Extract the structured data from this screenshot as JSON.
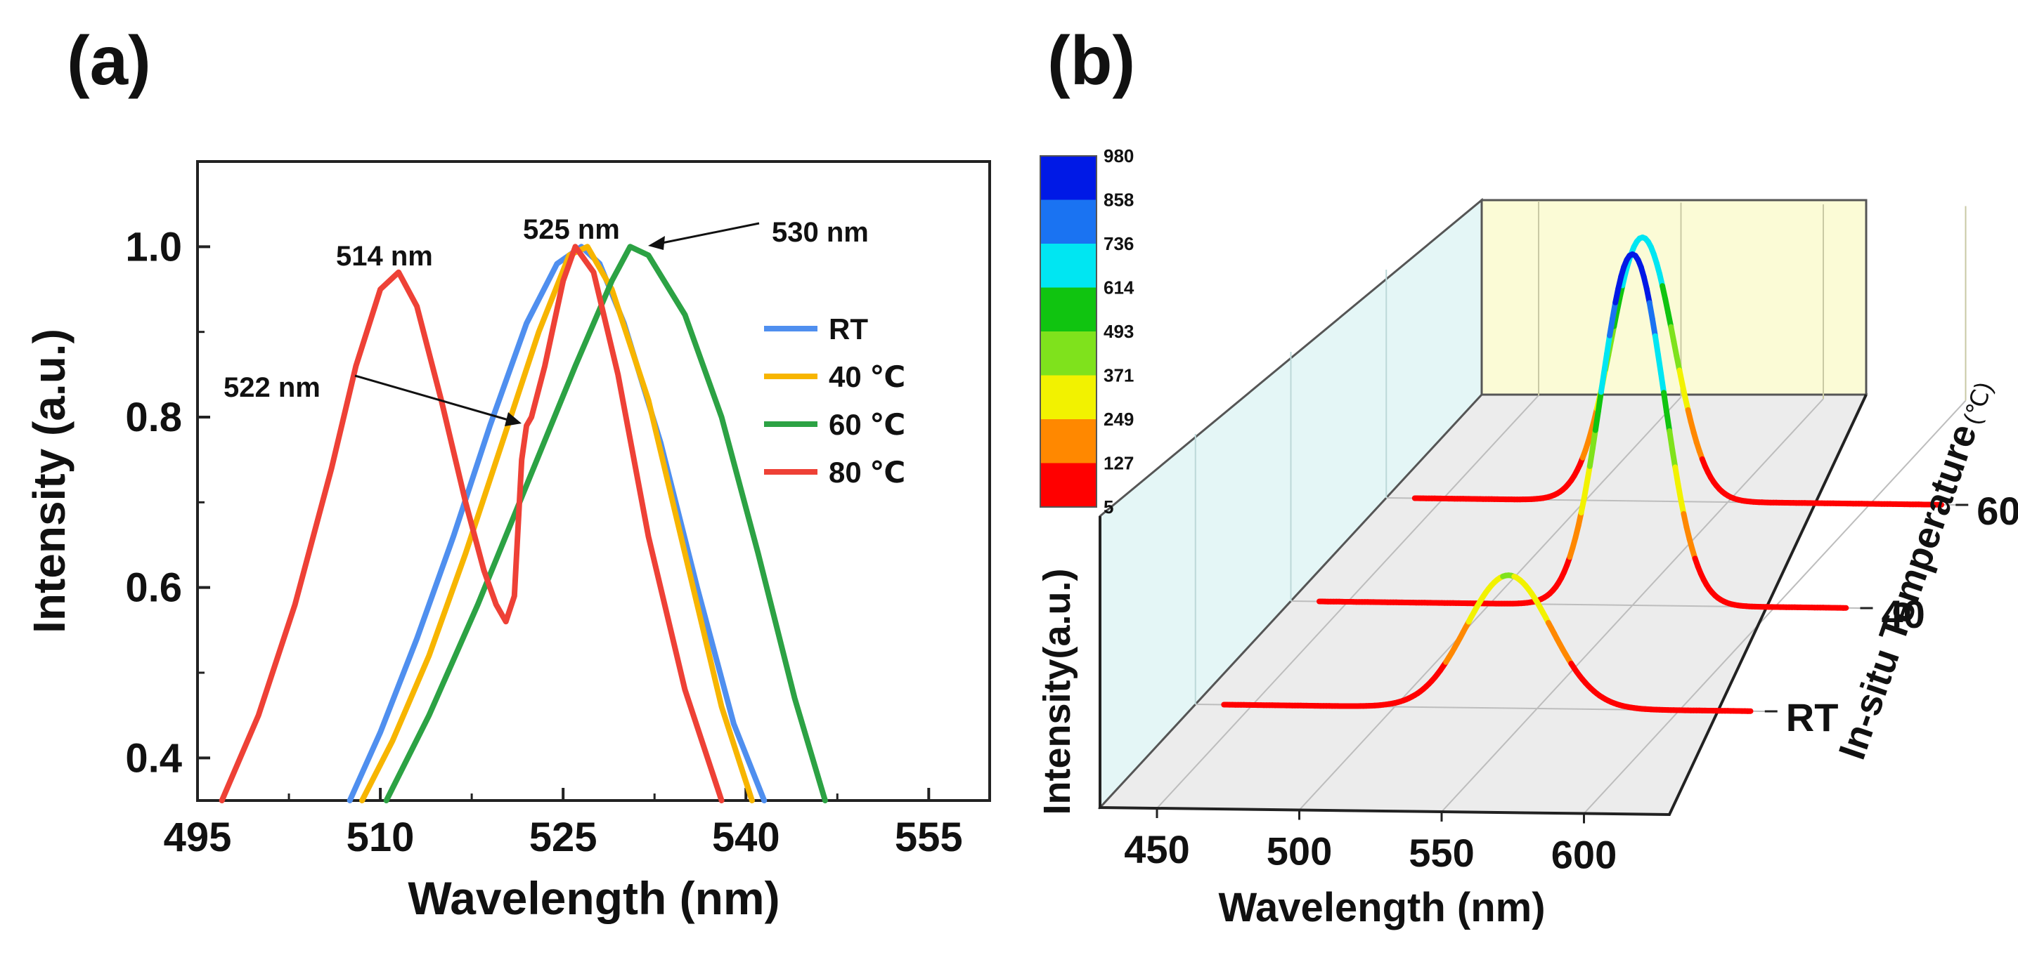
{
  "panels": {
    "a": "(a)",
    "b": "(b)"
  },
  "chart_data": [
    {
      "type": "line",
      "title": "",
      "xlabel": "Wavelength (nm)",
      "ylabel": "Intensity (a.u.)",
      "xlim": [
        495,
        560
      ],
      "ylim": [
        0.35,
        1.1
      ],
      "xticks": [
        "495",
        "510",
        "525",
        "540",
        "555"
      ],
      "yticks": [
        "0.4",
        "0.6",
        "0.8",
        "1.0"
      ],
      "legend_position": "right",
      "series": [
        {
          "name": "RT",
          "color": "#4f8fef",
          "x": [
            507.5,
            510,
            513,
            516,
            519,
            522,
            524.5,
            526.5,
            528,
            530,
            533,
            536,
            539,
            541.5
          ],
          "y": [
            0.35,
            0.43,
            0.54,
            0.66,
            0.79,
            0.91,
            0.98,
            1.0,
            0.98,
            0.91,
            0.77,
            0.6,
            0.44,
            0.35
          ]
        },
        {
          "name": "40 ℃",
          "color": "#f7b500",
          "x": [
            508.5,
            511,
            514,
            517,
            520,
            523,
            525.5,
            527,
            529,
            532,
            535,
            538,
            540.5
          ],
          "y": [
            0.35,
            0.42,
            0.52,
            0.64,
            0.77,
            0.9,
            0.99,
            1.0,
            0.95,
            0.82,
            0.64,
            0.46,
            0.35
          ]
        },
        {
          "name": "60 ℃",
          "color": "#2ca244",
          "x": [
            510.5,
            514,
            518,
            522,
            526,
            529,
            530.5,
            532,
            535,
            538,
            541,
            544,
            546.5
          ],
          "y": [
            0.35,
            0.45,
            0.58,
            0.72,
            0.86,
            0.96,
            1.0,
            0.99,
            0.92,
            0.8,
            0.64,
            0.47,
            0.35
          ]
        },
        {
          "name": "80 ℃",
          "color": "#ee4136",
          "x": [
            497,
            500,
            503,
            506,
            508,
            510,
            511.5,
            513,
            515,
            517,
            518.5,
            519.5,
            520.3,
            521,
            521.6,
            522,
            522.4,
            523.5,
            525,
            526,
            527.5,
            529.5,
            532,
            535,
            538
          ],
          "y": [
            0.35,
            0.45,
            0.58,
            0.74,
            0.86,
            0.95,
            0.97,
            0.93,
            0.82,
            0.7,
            0.62,
            0.58,
            0.56,
            0.59,
            0.75,
            0.79,
            0.8,
            0.86,
            0.96,
            1.0,
            0.97,
            0.85,
            0.66,
            0.48,
            0.35
          ]
        }
      ],
      "annotations": [
        {
          "text": "514 nm"
        },
        {
          "text": "525 nm"
        },
        {
          "text": "530 nm"
        },
        {
          "text": "522 nm"
        }
      ]
    },
    {
      "type": "line",
      "title": "",
      "xlabel": "Wavelength (nm)",
      "ylabel": "Intensity(a.u.)",
      "zlabel": "In-situ Temperature",
      "zlabel_unit": "(℃)",
      "xlim": [
        430,
        630
      ],
      "xticks": [
        "450",
        "500",
        "550",
        "600"
      ],
      "zticks": [
        "RT",
        "40",
        "60"
      ],
      "colorbar": {
        "ticks": [
          "980",
          "858",
          "736",
          "614",
          "493",
          "371",
          "249",
          "127",
          "5"
        ],
        "colors": [
          "#0019e6",
          "#1a73f2",
          "#00e6f2",
          "#10c410",
          "#7fe21c",
          "#f2f200",
          "#ff8800",
          "#ff0000"
        ]
      },
      "series": [
        {
          "name": "RT",
          "peak_nm": 540,
          "sigma": 15,
          "peak_height": 371
        },
        {
          "name": "40",
          "peak_nm": 550,
          "sigma": 11,
          "peak_height": 980
        },
        {
          "name": "60",
          "peak_nm": 520,
          "sigma": 11,
          "peak_height": 736
        }
      ]
    }
  ]
}
